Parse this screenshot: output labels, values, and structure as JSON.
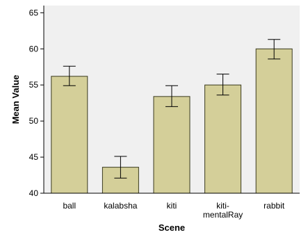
{
  "chart_data": {
    "type": "bar",
    "title": "",
    "xlabel": "Scene",
    "ylabel": "Mean Value",
    "categories": [
      [
        "ball"
      ],
      [
        "kalabsha"
      ],
      [
        "kiti"
      ],
      [
        "kiti-",
        "mentalRay"
      ],
      [
        "rabbit"
      ]
    ],
    "values": [
      56.2,
      43.6,
      53.4,
      55.0,
      60.0
    ],
    "error_low": [
      54.9,
      42.1,
      52.0,
      53.6,
      58.6
    ],
    "error_high": [
      57.6,
      45.1,
      54.9,
      56.5,
      61.3
    ],
    "ylim": [
      40,
      66
    ],
    "yticks": [
      40,
      45,
      50,
      55,
      60,
      65
    ],
    "grid": false,
    "colors": {
      "bar_fill": "#d4cf99",
      "bar_stroke": "#3a3a1e",
      "plot_bg": "#f0f0f0",
      "axis": "#000000"
    }
  }
}
